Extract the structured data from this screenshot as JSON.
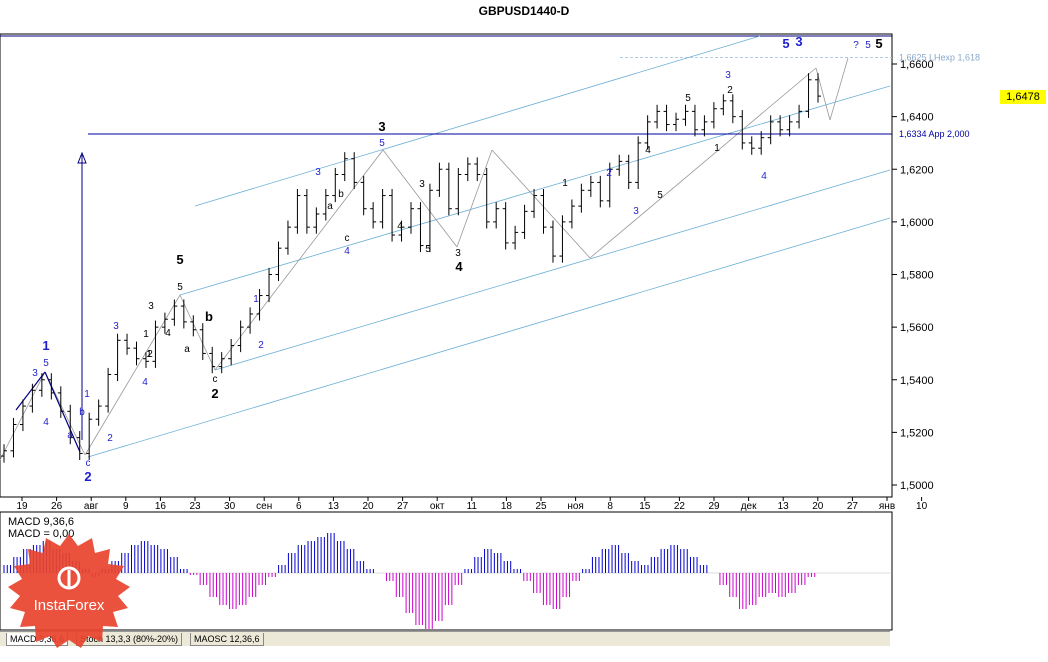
{
  "window": {
    "title": "GBPUSD1440-D"
  },
  "chart_data": {
    "type": "candlestick",
    "title": "GBPUSD1440-D",
    "ylim": [
      1.496,
      1.67
    ],
    "yticks": [
      "1,6600",
      "1,6400",
      "1,6200",
      "1,6000",
      "1,5800",
      "1,5600",
      "1,5400",
      "1,5200",
      "1,5000"
    ],
    "xticks": [
      "19",
      "26",
      "авг",
      "9",
      "16",
      "23",
      "30",
      "сен",
      "6",
      "13",
      "20",
      "27",
      "окт",
      "11",
      "18",
      "25",
      "ноя",
      "8",
      "15",
      "22",
      "29",
      "дек",
      "13",
      "20",
      "27",
      "янв",
      "10"
    ],
    "current_price": "1,6478",
    "levels": [
      {
        "label": "1,6625 LHexp 1,618",
        "value": 1.6625,
        "color": "#a8c4e0"
      },
      {
        "label": "1,6334 App 2,000",
        "value": 1.6334,
        "color": "#0000a0"
      }
    ],
    "close": [
      1.513,
      1.523,
      1.53,
      1.536,
      1.54,
      1.535,
      1.528,
      1.518,
      1.512,
      1.525,
      1.53,
      1.542,
      1.555,
      1.552,
      1.548,
      1.547,
      1.56,
      1.563,
      1.568,
      1.562,
      1.559,
      1.55,
      1.545,
      1.548,
      1.553,
      1.56,
      1.565,
      1.572,
      1.58,
      1.59,
      1.598,
      1.61,
      1.598,
      1.603,
      1.61,
      1.618,
      1.624,
      1.615,
      1.605,
      1.6,
      1.61,
      1.595,
      1.598,
      1.605,
      1.591,
      1.612,
      1.62,
      1.605,
      1.618,
      1.622,
      1.618,
      1.6,
      1.605,
      1.592,
      1.596,
      1.604,
      1.61,
      1.598,
      1.587,
      1.6,
      1.606,
      1.612,
      1.615,
      1.608,
      1.62,
      1.623,
      1.615,
      1.63,
      1.638,
      1.642,
      1.637,
      1.639,
      1.642,
      1.635,
      1.638,
      1.643,
      1.646,
      1.64,
      1.63,
      1.628,
      1.632,
      1.638,
      1.635,
      1.638,
      1.642,
      1.654,
      1.6478
    ],
    "wave_labels": [
      "1",
      "5",
      "3",
      "4",
      "a",
      "b",
      "c",
      "2",
      "1",
      "2",
      "3",
      "4",
      "5",
      "1",
      "a",
      "b",
      "c",
      "2",
      "1",
      "2",
      "3",
      "4",
      "5",
      "3",
      "1",
      "2",
      "3",
      "4",
      "5",
      "a",
      "b",
      "c",
      "3",
      "4",
      "5",
      "1",
      "2",
      "3",
      "4",
      "5",
      "3",
      "4",
      "5",
      "1",
      "2",
      "3",
      "4",
      "5",
      "3",
      "?",
      "5",
      "5",
      "5"
    ],
    "indicator": {
      "name": "MACD 9,36,6",
      "line": "MACD = 0,00",
      "histogram": [
        0.2,
        0.4,
        0.6,
        0.7,
        0.8,
        0.6,
        0.5,
        0.3,
        0.1,
        -0.1,
        0.1,
        0.3,
        0.5,
        0.7,
        0.8,
        0.7,
        0.6,
        0.4,
        0.1,
        -0.05,
        -0.3,
        -0.6,
        -0.8,
        -0.9,
        -0.8,
        -0.6,
        -0.3,
        -0.1,
        0.2,
        0.5,
        0.7,
        0.8,
        0.9,
        1.0,
        0.8,
        0.6,
        0.3,
        0.1,
        0.0,
        -0.2,
        -0.6,
        -1.0,
        -1.3,
        -1.4,
        -1.2,
        -0.8,
        -0.3,
        0.1,
        0.4,
        0.6,
        0.5,
        0.3,
        0.1,
        -0.2,
        -0.5,
        -0.8,
        -0.9,
        -0.6,
        -0.2,
        0.1,
        0.4,
        0.6,
        0.7,
        0.5,
        0.3,
        0.2,
        0.4,
        0.6,
        0.7,
        0.6,
        0.4,
        0.2,
        0.0,
        -0.3,
        -0.6,
        -0.9,
        -0.8,
        -0.6,
        -0.5,
        -0.6,
        -0.5,
        -0.3,
        -0.1,
        0.0
      ]
    }
  },
  "tabs": [
    {
      "label": "MACD 9,36,6"
    },
    {
      "label": "Stoch 13,3,3 (80%-20%)"
    },
    {
      "label": "MAOSC 12,36,6"
    }
  ],
  "brand": {
    "name": "InstaForex"
  },
  "colors": {
    "bull": "#000000",
    "bear": "#000000",
    "channel": "#6baed6",
    "macd_pos": "#0000cc",
    "macd_neg": "#cc00cc",
    "wave_blue": "#1f1fcf",
    "wave_black": "#000000"
  }
}
